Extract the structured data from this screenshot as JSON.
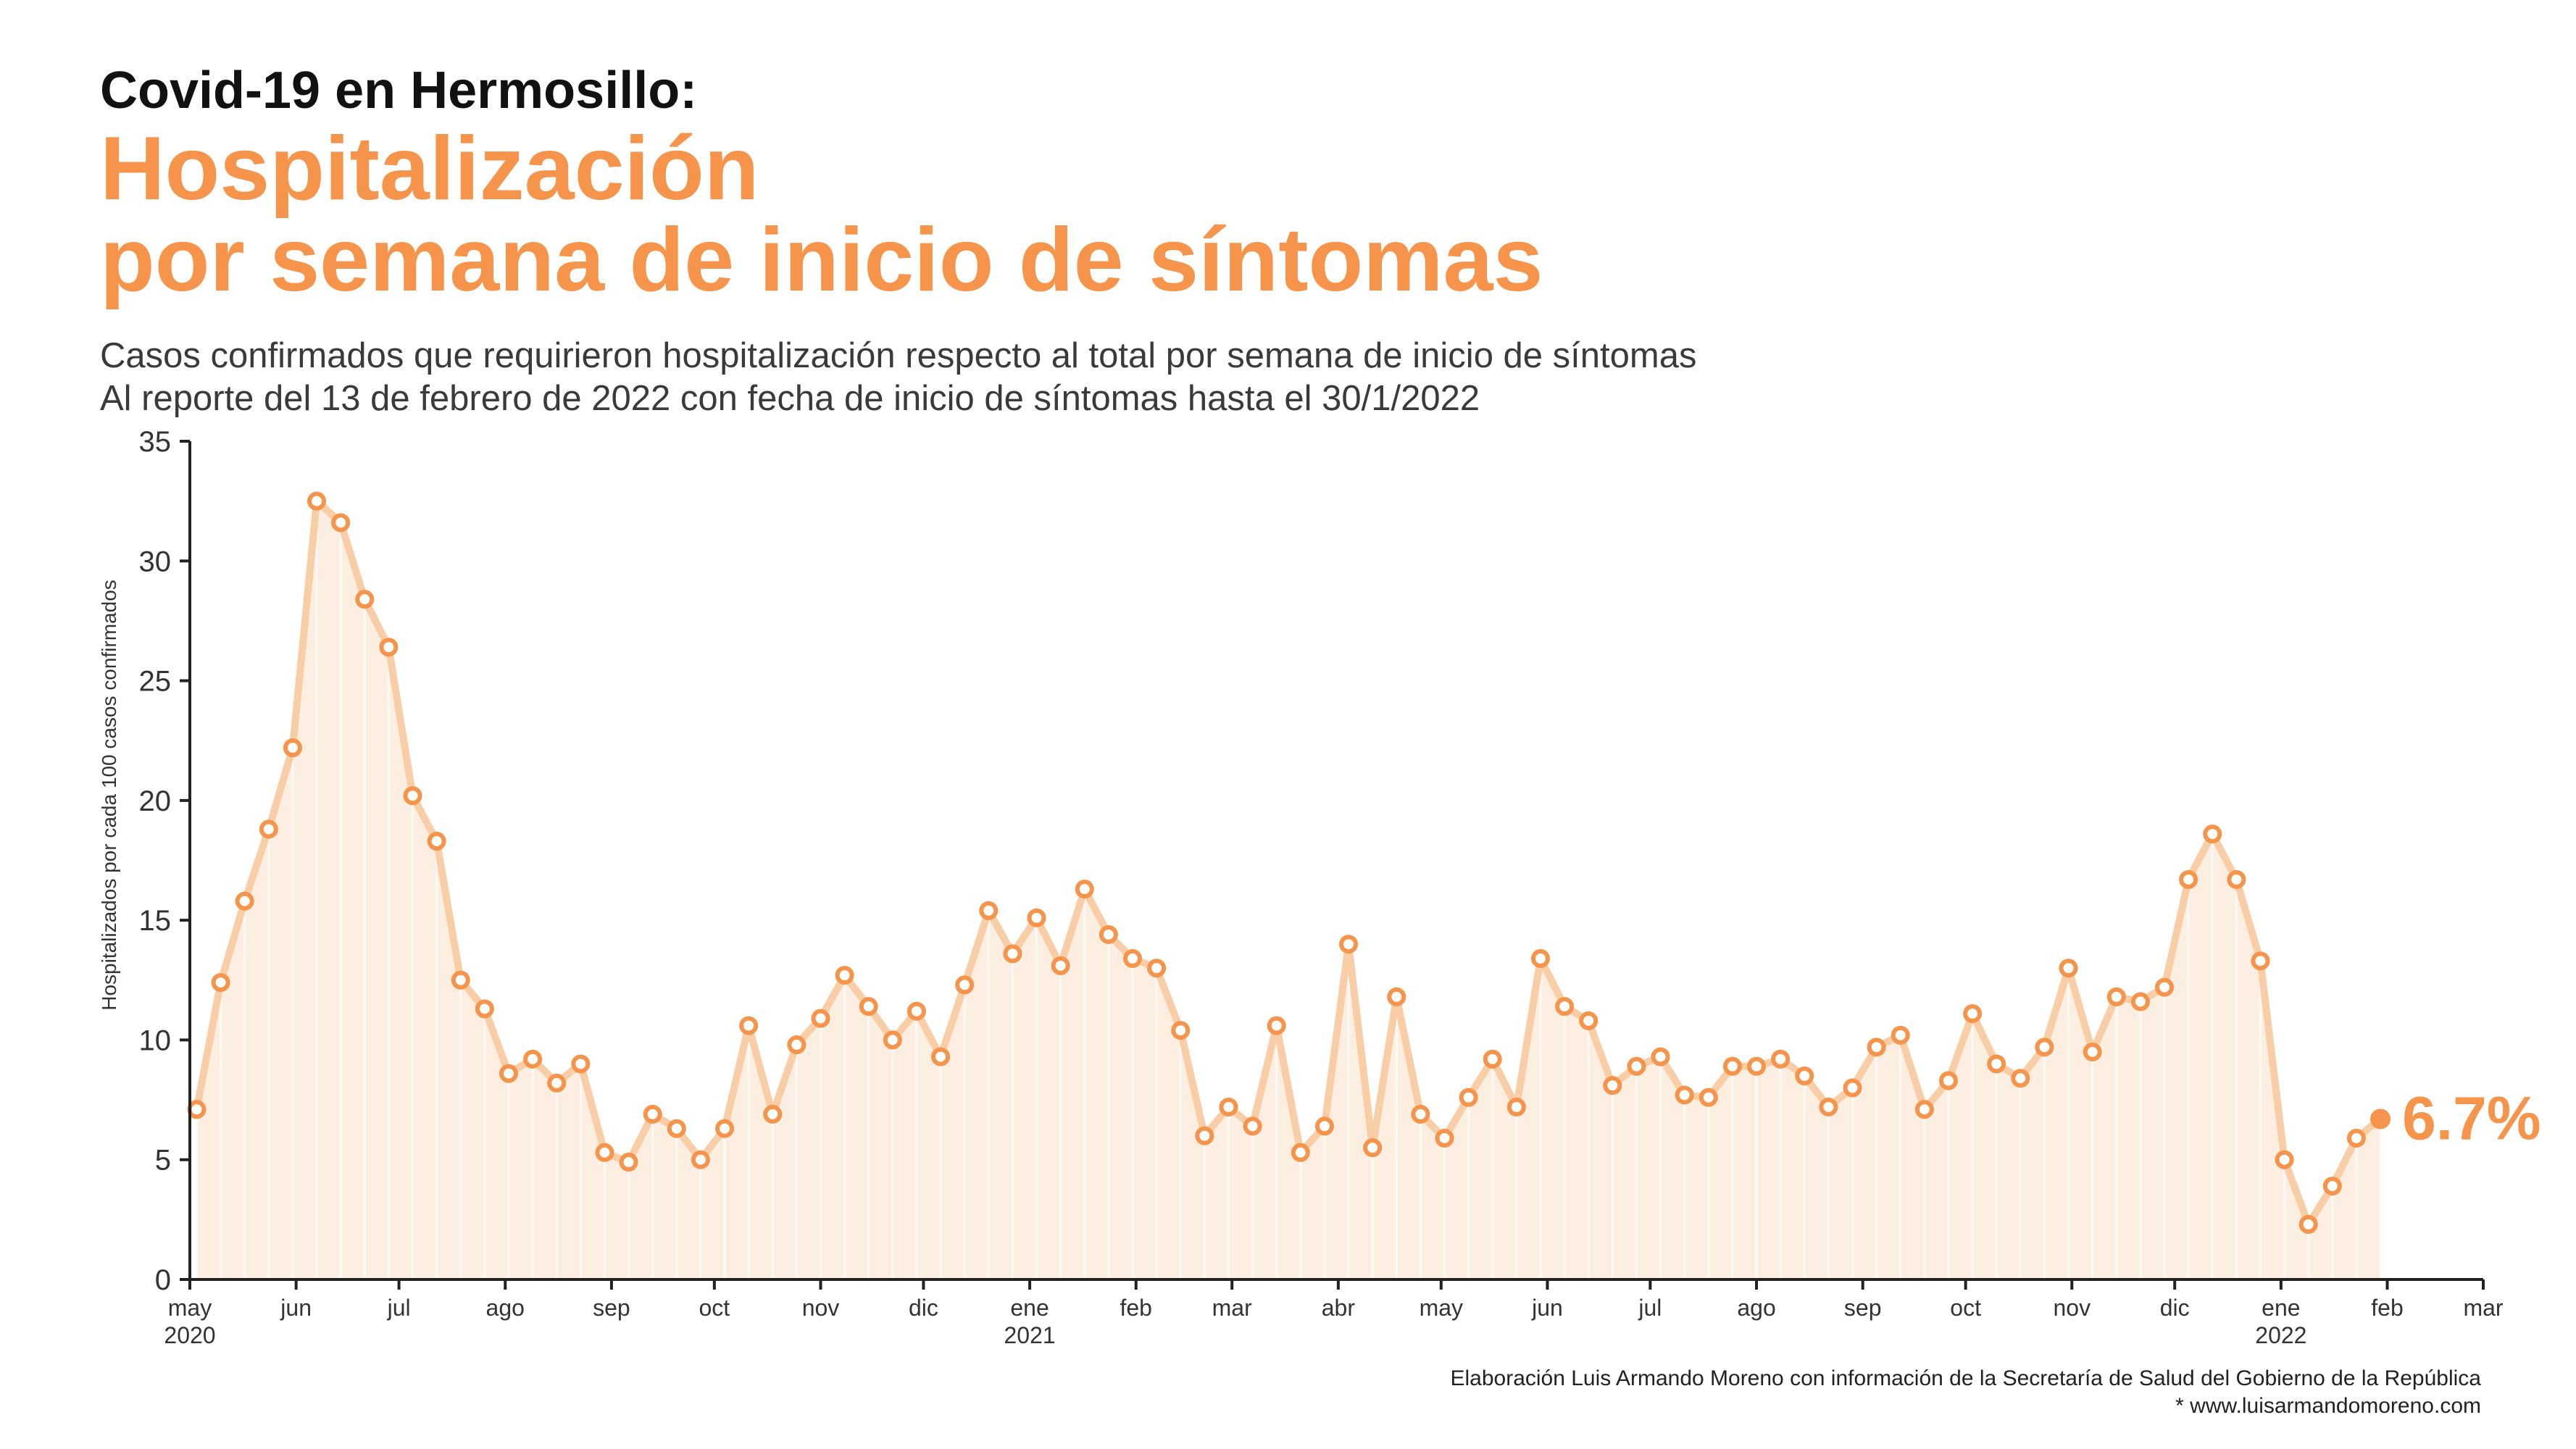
{
  "header": {
    "title": "Covid-19 en Hermosillo:",
    "subtitle_line1": "Hospitalización",
    "subtitle_line2": "por semana de inicio de síntomas",
    "description_line1": "Casos confirmados que requirieron hospitalización respecto al total por semana de inicio de síntomas",
    "description_line2": "Al reporte del 13 de febrero de 2022 con fecha de inicio de síntomas hasta el 30/1/2022"
  },
  "chart_data": {
    "type": "line",
    "ylabel": "Hospitalizados por cada 100 casos confirmados",
    "ylim": [
      0,
      35
    ],
    "yticks": [
      0,
      5,
      10,
      15,
      20,
      25,
      30,
      35
    ],
    "grid": false,
    "x_start": "2020-05-01",
    "x_end": "2022-03-01",
    "month_ticks": [
      {
        "date": "2020-05-01",
        "label": "may",
        "year": "2020"
      },
      {
        "date": "2020-06-01",
        "label": "jun",
        "year": ""
      },
      {
        "date": "2020-07-01",
        "label": "jul",
        "year": ""
      },
      {
        "date": "2020-08-01",
        "label": "ago",
        "year": ""
      },
      {
        "date": "2020-09-01",
        "label": "sep",
        "year": ""
      },
      {
        "date": "2020-10-01",
        "label": "oct",
        "year": ""
      },
      {
        "date": "2020-11-01",
        "label": "nov",
        "year": ""
      },
      {
        "date": "2020-12-01",
        "label": "dic",
        "year": ""
      },
      {
        "date": "2021-01-01",
        "label": "ene",
        "year": "2021"
      },
      {
        "date": "2021-02-01",
        "label": "feb",
        "year": ""
      },
      {
        "date": "2021-03-01",
        "label": "mar",
        "year": ""
      },
      {
        "date": "2021-04-01",
        "label": "abr",
        "year": ""
      },
      {
        "date": "2021-05-01",
        "label": "may",
        "year": ""
      },
      {
        "date": "2021-06-01",
        "label": "jun",
        "year": ""
      },
      {
        "date": "2021-07-01",
        "label": "jul",
        "year": ""
      },
      {
        "date": "2021-08-01",
        "label": "ago",
        "year": ""
      },
      {
        "date": "2021-09-01",
        "label": "sep",
        "year": ""
      },
      {
        "date": "2021-10-01",
        "label": "oct",
        "year": ""
      },
      {
        "date": "2021-11-01",
        "label": "nov",
        "year": ""
      },
      {
        "date": "2021-12-01",
        "label": "dic",
        "year": ""
      },
      {
        "date": "2022-01-01",
        "label": "ene",
        "year": "2022"
      },
      {
        "date": "2022-02-01",
        "label": "feb",
        "year": ""
      },
      {
        "date": "2022-03-01",
        "label": "mar",
        "year": ""
      }
    ],
    "weekly_start": "2020-05-03",
    "week_step_days": 7,
    "values": [
      7.1,
      12.4,
      15.8,
      18.8,
      22.2,
      32.5,
      31.6,
      28.4,
      26.4,
      20.2,
      18.3,
      12.5,
      11.3,
      8.6,
      9.2,
      8.2,
      9.0,
      5.3,
      4.9,
      6.9,
      6.3,
      5.0,
      6.3,
      10.6,
      6.9,
      9.8,
      10.9,
      12.7,
      11.4,
      10.0,
      11.2,
      9.3,
      12.3,
      15.4,
      13.6,
      15.1,
      13.1,
      16.3,
      14.4,
      13.4,
      13.0,
      10.4,
      6.0,
      7.2,
      6.4,
      10.6,
      5.3,
      6.4,
      14.0,
      5.5,
      11.8,
      6.9,
      5.9,
      7.6,
      9.2,
      7.2,
      13.4,
      11.4,
      10.8,
      8.1,
      8.9,
      9.3,
      7.7,
      7.6,
      8.9,
      8.9,
      9.2,
      8.5,
      7.2,
      8.0,
      9.7,
      10.2,
      7.1,
      8.3,
      11.1,
      9.0,
      8.4,
      9.7,
      13.0,
      9.5,
      11.8,
      11.6,
      12.2,
      16.7,
      18.6,
      16.7,
      13.3,
      5.0,
      2.3,
      3.9,
      5.9,
      6.7
    ],
    "last_value_label": "6.7%",
    "colors": {
      "line": "#f9cda6",
      "marker": "#f5944a",
      "area": "#fdeee2",
      "axis": "#222222"
    }
  },
  "footer": {
    "credit": "Elaboración Luis Armando Moreno con información de la Secretaría de Salud del Gobierno de la República",
    "website": "* www.luisarmandomoreno.com"
  }
}
